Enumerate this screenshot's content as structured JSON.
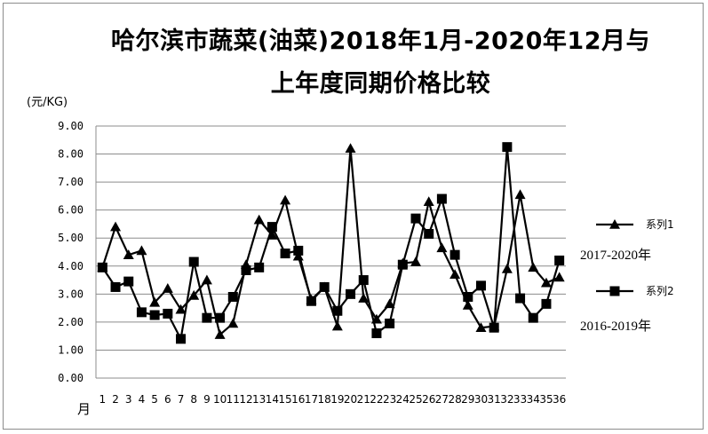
{
  "title_line1": "哈尔滨市蔬菜(油菜)2018年1月-2020年12月与",
  "title_line2": "上年度同期价格比较",
  "y_unit": "(元/KG)",
  "x_unit": "月",
  "notes": {
    "series1_period": "2017-2020年",
    "series2_period": "2016-2019年"
  },
  "chart_data": {
    "type": "line",
    "title": "哈尔滨市蔬菜(油菜)2018年1月-2020年12月与上年度同期价格比较",
    "xlabel": "月",
    "ylabel": "(元/KG)",
    "ylim": [
      0,
      9
    ],
    "ytick_step": 1,
    "ytick_labels": [
      "0.00",
      "1.00",
      "2.00",
      "3.00",
      "4.00",
      "5.00",
      "6.00",
      "7.00",
      "8.00",
      "9.00"
    ],
    "grid": true,
    "legend_position": "right",
    "categories": [
      "1",
      "2",
      "3",
      "4",
      "5",
      "6",
      "7",
      "8",
      "9",
      "10",
      "11",
      "12",
      "13",
      "14",
      "15",
      "16",
      "17",
      "18",
      "19",
      "20",
      "21",
      "22",
      "23",
      "24",
      "25",
      "26",
      "27",
      "28",
      "29",
      "30",
      "31",
      "32",
      "33",
      "34",
      "35",
      "36"
    ],
    "series": [
      {
        "name": "系列1",
        "marker": "triangle",
        "color": "#000000",
        "values": [
          3.95,
          5.4,
          4.4,
          4.55,
          2.7,
          3.2,
          2.45,
          2.95,
          3.5,
          1.55,
          1.95,
          4.05,
          5.65,
          5.1,
          6.35,
          4.35,
          2.8,
          3.25,
          1.85,
          8.2,
          2.85,
          2.1,
          2.65,
          4.1,
          4.15,
          6.3,
          4.65,
          3.7,
          2.6,
          1.8,
          1.85,
          3.9,
          6.55,
          3.95,
          3.4,
          3.6
        ]
      },
      {
        "name": "系列2",
        "marker": "square",
        "color": "#000000",
        "values": [
          3.95,
          3.25,
          3.45,
          2.35,
          2.25,
          2.3,
          1.4,
          4.15,
          2.15,
          2.15,
          2.9,
          3.85,
          3.95,
          5.4,
          4.45,
          4.55,
          2.75,
          3.25,
          2.4,
          3.0,
          3.5,
          1.6,
          1.95,
          4.05,
          5.7,
          5.15,
          6.4,
          4.4,
          2.9,
          3.3,
          1.8,
          8.25,
          2.85,
          2.15,
          2.65,
          4.2
        ]
      }
    ]
  }
}
